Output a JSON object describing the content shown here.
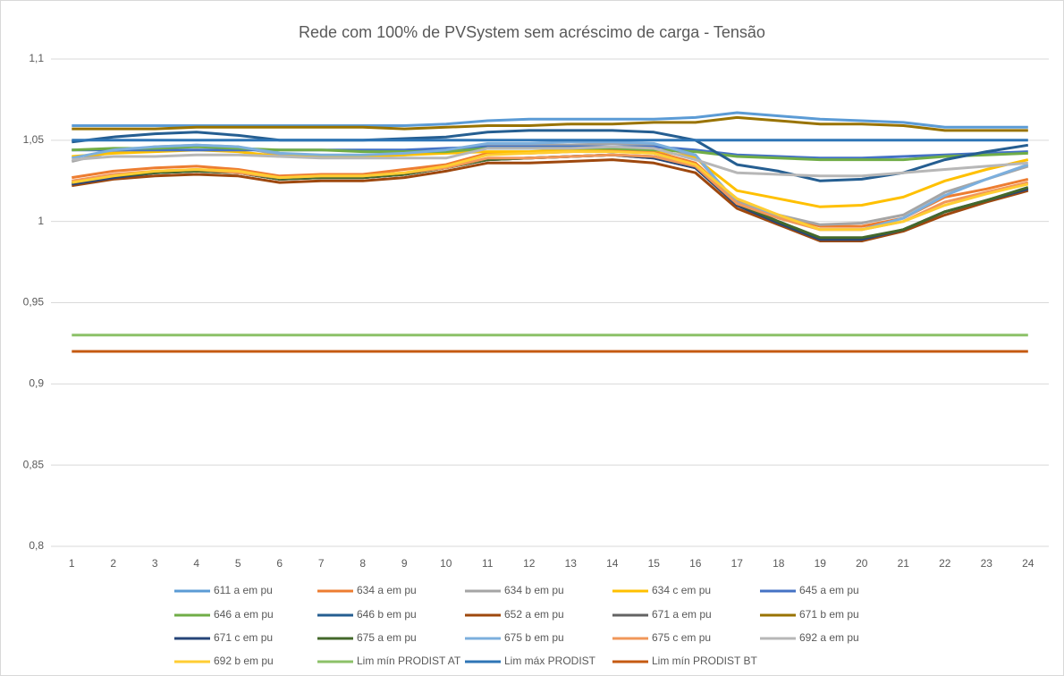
{
  "chart_data": {
    "type": "line",
    "title": "Rede com 100% de PVSystem sem acréscimo de carga - Tensão",
    "categories": [
      "1",
      "2",
      "3",
      "4",
      "5",
      "6",
      "7",
      "8",
      "9",
      "10",
      "11",
      "12",
      "13",
      "14",
      "15",
      "16",
      "17",
      "18",
      "19",
      "20",
      "21",
      "22",
      "23",
      "24"
    ],
    "ylim": [
      0.8,
      1.1
    ],
    "yticks": [
      {
        "value": 0.8,
        "label": "0,8"
      },
      {
        "value": 0.85,
        "label": "0,85"
      },
      {
        "value": 0.9,
        "label": "0,9"
      },
      {
        "value": 0.95,
        "label": "0,95"
      },
      1,
      {
        "value": 1.05,
        "label": "1,05"
      },
      {
        "value": 1.1,
        "label": "1,1"
      }
    ],
    "grid": true,
    "legend": "bottom",
    "series": [
      {
        "name": "611 a em pu",
        "color": "#5B9BD5",
        "values": [
          1.059,
          1.059,
          1.059,
          1.059,
          1.059,
          1.059,
          1.059,
          1.059,
          1.059,
          1.06,
          1.062,
          1.063,
          1.063,
          1.063,
          1.063,
          1.064,
          1.067,
          1.065,
          1.063,
          1.062,
          1.061,
          1.058,
          1.058,
          1.058
        ]
      },
      {
        "name": "634 a em pu",
        "color": "#ED7D31",
        "values": [
          1.027,
          1.031,
          1.033,
          1.034,
          1.032,
          1.028,
          1.029,
          1.029,
          1.032,
          1.035,
          1.042,
          1.042,
          1.043,
          1.044,
          1.043,
          1.036,
          1.013,
          1.004,
          0.997,
          0.997,
          1.002,
          1.015,
          1.02,
          1.026
        ]
      },
      {
        "name": "634 b em pu",
        "color": "#A5A5A5",
        "values": [
          1.037,
          1.043,
          1.046,
          1.047,
          1.046,
          1.041,
          1.04,
          1.04,
          1.041,
          1.043,
          1.047,
          1.047,
          1.047,
          1.048,
          1.047,
          1.04,
          1.012,
          1.004,
          0.998,
          0.999,
          1.004,
          1.018,
          1.026,
          1.034
        ]
      },
      {
        "name": "634 c em pu",
        "color": "#FFC000",
        "values": [
          1.04,
          1.042,
          1.043,
          1.044,
          1.043,
          1.04,
          1.04,
          1.04,
          1.041,
          1.042,
          1.043,
          1.043,
          1.044,
          1.045,
          1.044,
          1.039,
          1.019,
          1.014,
          1.009,
          1.01,
          1.015,
          1.025,
          1.032,
          1.038
        ]
      },
      {
        "name": "645 a em pu",
        "color": "#4472C4",
        "values": [
          1.044,
          1.044,
          1.044,
          1.044,
          1.044,
          1.044,
          1.044,
          1.044,
          1.044,
          1.045,
          1.046,
          1.046,
          1.046,
          1.046,
          1.046,
          1.044,
          1.041,
          1.04,
          1.039,
          1.039,
          1.04,
          1.041,
          1.042,
          1.043
        ]
      },
      {
        "name": "646 a em pu",
        "color": "#70AD47",
        "values": [
          1.044,
          1.045,
          1.045,
          1.046,
          1.045,
          1.044,
          1.044,
          1.043,
          1.043,
          1.043,
          1.045,
          1.045,
          1.045,
          1.045,
          1.044,
          1.043,
          1.04,
          1.039,
          1.038,
          1.038,
          1.038,
          1.04,
          1.041,
          1.042
        ]
      },
      {
        "name": "646 b em pu",
        "color": "#255E91",
        "values": [
          1.049,
          1.052,
          1.054,
          1.055,
          1.053,
          1.05,
          1.05,
          1.05,
          1.051,
          1.052,
          1.055,
          1.056,
          1.056,
          1.056,
          1.055,
          1.05,
          1.035,
          1.031,
          1.025,
          1.026,
          1.03,
          1.038,
          1.043,
          1.047
        ]
      },
      {
        "name": "652 a em pu",
        "color": "#9E480E",
        "values": [
          1.022,
          1.026,
          1.028,
          1.029,
          1.028,
          1.024,
          1.025,
          1.025,
          1.027,
          1.031,
          1.036,
          1.036,
          1.037,
          1.038,
          1.036,
          1.03,
          1.008,
          0.998,
          0.988,
          0.988,
          0.994,
          1.004,
          1.012,
          1.019
        ]
      },
      {
        "name": "671 a em pu",
        "color": "#636363",
        "values": [
          1.023,
          1.027,
          1.03,
          1.031,
          1.03,
          1.026,
          1.027,
          1.027,
          1.029,
          1.033,
          1.038,
          1.039,
          1.04,
          1.041,
          1.039,
          1.033,
          1.01,
          0.999,
          0.989,
          0.989,
          0.995,
          1.006,
          1.013,
          1.02
        ]
      },
      {
        "name": "671 b em pu",
        "color": "#997300",
        "values": [
          1.057,
          1.057,
          1.057,
          1.058,
          1.058,
          1.058,
          1.058,
          1.058,
          1.057,
          1.058,
          1.059,
          1.059,
          1.06,
          1.06,
          1.061,
          1.061,
          1.064,
          1.062,
          1.06,
          1.06,
          1.059,
          1.056,
          1.056,
          1.056
        ]
      },
      {
        "name": "671 c em pu",
        "color": "#264478",
        "values": [
          1.023,
          1.027,
          1.03,
          1.031,
          1.03,
          1.026,
          1.027,
          1.027,
          1.029,
          1.033,
          1.038,
          1.039,
          1.04,
          1.041,
          1.039,
          1.033,
          1.01,
          0.999,
          0.989,
          0.989,
          0.995,
          1.006,
          1.013,
          1.02
        ]
      },
      {
        "name": "675 a em pu",
        "color": "#43682B",
        "values": [
          1.024,
          1.028,
          1.03,
          1.031,
          1.03,
          1.026,
          1.027,
          1.027,
          1.029,
          1.033,
          1.038,
          1.039,
          1.04,
          1.041,
          1.04,
          1.034,
          1.011,
          1.0,
          0.99,
          0.99,
          0.995,
          1.006,
          1.013,
          1.021
        ]
      },
      {
        "name": "675 b em pu",
        "color": "#7CAFDD",
        "values": [
          1.039,
          1.044,
          1.046,
          1.047,
          1.046,
          1.042,
          1.041,
          1.041,
          1.042,
          1.044,
          1.048,
          1.048,
          1.049,
          1.049,
          1.048,
          1.041,
          1.011,
          1.003,
          0.995,
          0.995,
          1.002,
          1.016,
          1.026,
          1.035
        ]
      },
      {
        "name": "675 c em pu",
        "color": "#F1975A",
        "values": [
          1.025,
          1.029,
          1.031,
          1.032,
          1.03,
          1.027,
          1.028,
          1.028,
          1.03,
          1.033,
          1.039,
          1.039,
          1.04,
          1.041,
          1.04,
          1.034,
          1.011,
          1.002,
          0.995,
          0.995,
          1.0,
          1.012,
          1.018,
          1.024
        ]
      },
      {
        "name": "692 a em pu",
        "color": "#B7B7B7",
        "values": [
          1.038,
          1.04,
          1.04,
          1.041,
          1.041,
          1.04,
          1.039,
          1.039,
          1.039,
          1.039,
          1.045,
          1.045,
          1.045,
          1.046,
          1.045,
          1.038,
          1.03,
          1.029,
          1.028,
          1.028,
          1.03,
          1.032,
          1.034,
          1.036
        ]
      },
      {
        "name": "692 b em pu",
        "color": "#FFCD33",
        "values": [
          1.024,
          1.028,
          1.031,
          1.032,
          1.031,
          1.027,
          1.028,
          1.028,
          1.03,
          1.034,
          1.041,
          1.042,
          1.043,
          1.043,
          1.042,
          1.035,
          1.014,
          1.004,
          0.995,
          0.995,
          1.0,
          1.01,
          1.017,
          1.023
        ]
      },
      {
        "name": "Lim mín PRODIST AT",
        "color": "#8CC168",
        "values": [
          0.93,
          0.93,
          0.93,
          0.93,
          0.93,
          0.93,
          0.93,
          0.93,
          0.93,
          0.93,
          0.93,
          0.93,
          0.93,
          0.93,
          0.93,
          0.93,
          0.93,
          0.93,
          0.93,
          0.93,
          0.93,
          0.93,
          0.93,
          0.93
        ]
      },
      {
        "name": "Lim máx PRODIST",
        "color": "#2E75B6",
        "values": [
          1.05,
          1.05,
          1.05,
          1.05,
          1.05,
          1.05,
          1.05,
          1.05,
          1.05,
          1.05,
          1.05,
          1.05,
          1.05,
          1.05,
          1.05,
          1.05,
          1.05,
          1.05,
          1.05,
          1.05,
          1.05,
          1.05,
          1.05,
          1.05
        ]
      },
      {
        "name": "Lim mín PRODIST BT",
        "color": "#C55A11",
        "values": [
          0.92,
          0.92,
          0.92,
          0.92,
          0.92,
          0.92,
          0.92,
          0.92,
          0.92,
          0.92,
          0.92,
          0.92,
          0.92,
          0.92,
          0.92,
          0.92,
          0.92,
          0.92,
          0.92,
          0.92,
          0.92,
          0.92,
          0.92,
          0.92
        ]
      }
    ]
  }
}
